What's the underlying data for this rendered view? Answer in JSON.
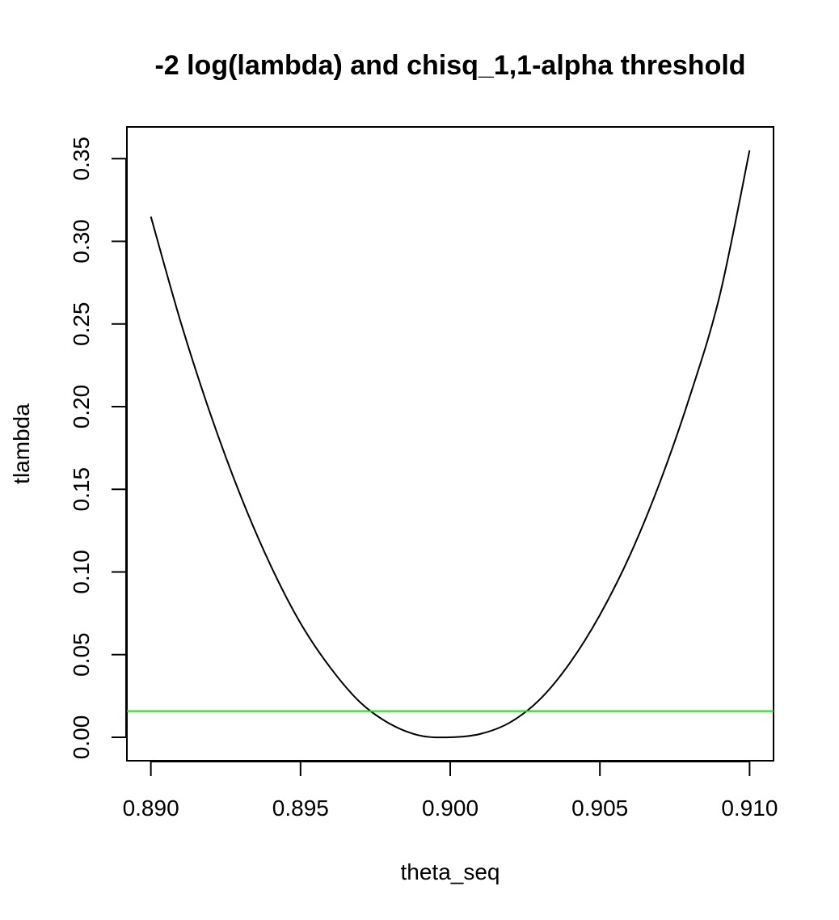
{
  "chart_data": {
    "type": "line",
    "title": "-2 log(lambda) and chisq_1,1-alpha threshold",
    "xlabel": "theta_seq",
    "ylabel": "tlambda",
    "xlim": [
      0.8892,
      0.9108
    ],
    "ylim": [
      -0.0142,
      0.3692
    ],
    "x_ticks": [
      0.89,
      0.895,
      0.9,
      0.905,
      0.91
    ],
    "x_tick_labels": [
      "0.890",
      "0.895",
      "0.900",
      "0.905",
      "0.910"
    ],
    "y_ticks": [
      0.0,
      0.05,
      0.1,
      0.15,
      0.2,
      0.25,
      0.3,
      0.35
    ],
    "y_tick_labels": [
      "0.00",
      "0.05",
      "0.10",
      "0.15",
      "0.20",
      "0.25",
      "0.30",
      "0.35"
    ],
    "grid": false,
    "series": [
      {
        "kind": "curve",
        "color": "#000000",
        "x": [
          0.89,
          0.891,
          0.892,
          0.893,
          0.894,
          0.895,
          0.896,
          0.897,
          0.898,
          0.899,
          0.9,
          0.901,
          0.902,
          0.903,
          0.904,
          0.905,
          0.906,
          0.907,
          0.908,
          0.909,
          0.91
        ],
        "y": [
          0.315,
          0.251,
          0.195,
          0.146,
          0.104,
          0.069,
          0.042,
          0.021,
          0.008,
          0.001,
          0.0,
          0.002,
          0.009,
          0.023,
          0.045,
          0.074,
          0.11,
          0.154,
          0.206,
          0.267,
          0.355
        ]
      },
      {
        "kind": "hline",
        "color": "#00ee00",
        "y": 0.0158
      }
    ]
  }
}
